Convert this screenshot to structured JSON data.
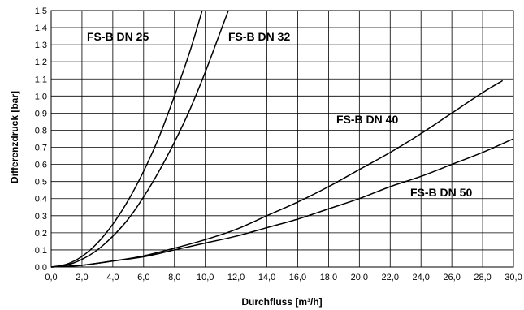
{
  "chart_data": {
    "type": "line",
    "xlabel": "Durchfluss [m³/h]",
    "ylabel": "Differenzdruck [bar]",
    "xlim": [
      0,
      30
    ],
    "ylim": [
      0,
      1.5
    ],
    "grid": true,
    "x_ticks": [
      "0,0",
      "2,0",
      "4,0",
      "6,0",
      "8,0",
      "10,0",
      "12,0",
      "14,0",
      "16,0",
      "18,0",
      "20,0",
      "22,0",
      "24,0",
      "26,0",
      "28,0",
      "30,0"
    ],
    "y_ticks": [
      "0,0",
      "0,1",
      "0,2",
      "0,3",
      "0,4",
      "0,5",
      "0,6",
      "0,7",
      "0,8",
      "0,9",
      "1,0",
      "1,1",
      "1,2",
      "1,3",
      "1,4",
      "1,5"
    ],
    "series": [
      {
        "name": "FS-B DN 25",
        "x": [
          0,
          1,
          2,
          3,
          4,
          5,
          6,
          7,
          8,
          9,
          9.8
        ],
        "y": [
          0,
          0.016,
          0.062,
          0.14,
          0.25,
          0.39,
          0.56,
          0.76,
          1.0,
          1.26,
          1.5
        ]
      },
      {
        "name": "FS-B DN 32",
        "x": [
          0,
          1,
          2,
          3,
          4,
          5,
          6,
          7,
          8,
          9,
          10,
          11,
          11.5
        ],
        "y": [
          0,
          0.011,
          0.045,
          0.1,
          0.18,
          0.28,
          0.41,
          0.56,
          0.73,
          0.92,
          1.14,
          1.38,
          1.5
        ]
      },
      {
        "name": "FS-B DN 40",
        "x": [
          0,
          2,
          4,
          6,
          8,
          10,
          12,
          14,
          16,
          18,
          20,
          22,
          24,
          26,
          28,
          29.3
        ],
        "y": [
          0,
          0.01,
          0.035,
          0.065,
          0.11,
          0.16,
          0.22,
          0.3,
          0.38,
          0.47,
          0.57,
          0.67,
          0.78,
          0.9,
          1.02,
          1.09
        ]
      },
      {
        "name": "FS-B DN 50",
        "x": [
          0,
          2,
          4,
          6,
          8,
          10,
          12,
          14,
          16,
          18,
          20,
          22,
          24,
          26,
          28,
          30
        ],
        "y": [
          0,
          0.01,
          0.035,
          0.06,
          0.1,
          0.14,
          0.18,
          0.23,
          0.28,
          0.34,
          0.4,
          0.47,
          0.53,
          0.6,
          0.67,
          0.75
        ]
      }
    ]
  }
}
